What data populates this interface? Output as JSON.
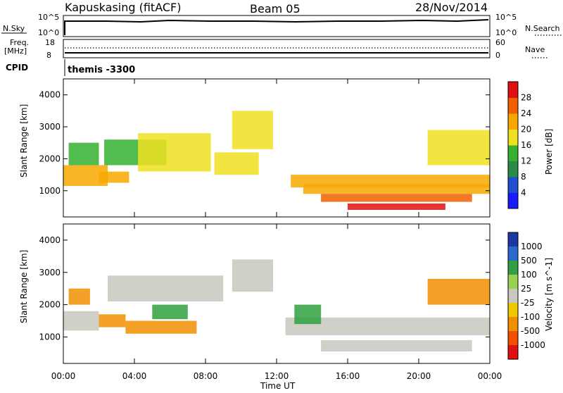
{
  "header": {
    "station": "Kapuskasing (fitACF)",
    "beam": "Beam 05",
    "date": "28/Nov/2014"
  },
  "top_panels": {
    "nsky": {
      "label": "N.Sky",
      "ticks": [
        "10^5",
        "10^0"
      ]
    },
    "nsearch": {
      "label": "N.Search",
      "ticks": [
        "10^5",
        "10^0"
      ]
    },
    "freq": {
      "label_line1": "Freq.",
      "label_line2": "[MHz]",
      "ticks": [
        "18",
        "8"
      ]
    },
    "nave": {
      "label": "Nave",
      "ticks": [
        "60",
        "0"
      ]
    },
    "cpid": {
      "label": "CPID",
      "value": "themis -3300"
    }
  },
  "colors": {
    "power": [
      "#1a1aff",
      "#1f4fd0",
      "#2a8a4a",
      "#35b030",
      "#f0e020",
      "#f7a800",
      "#f06000",
      "#e01010"
    ],
    "velocity": [
      "#1a3aa0",
      "#2a6ad0",
      "#30a040",
      "#9ad050",
      "#c8c8c0",
      "#f0c800",
      "#f09000",
      "#f05000",
      "#e01010"
    ],
    "gs": "#c8c8c0"
  },
  "chart_data": [
    {
      "type": "heatmap",
      "title": "",
      "ylabel": "Slant Range [km]",
      "xlabel": "",
      "ylim": [
        180,
        4500
      ],
      "yticks": [
        1000,
        2000,
        3000,
        4000
      ],
      "colorbar": {
        "label": "Power [dB]",
        "ticks": [
          "28",
          "24",
          "20",
          "16",
          "12",
          "8",
          "4"
        ],
        "range": [
          0,
          32
        ]
      },
      "bands": [
        {
          "t": [
            0.0,
            2.5
          ],
          "r": [
            1150,
            1800
          ],
          "v": 20
        },
        {
          "t": [
            0.3,
            2.0
          ],
          "r": [
            1800,
            2500
          ],
          "v": 14
        },
        {
          "t": [
            2.0,
            3.7
          ],
          "r": [
            1250,
            1600
          ],
          "v": 22
        },
        {
          "t": [
            2.3,
            5.8
          ],
          "r": [
            1800,
            2600
          ],
          "v": 15
        },
        {
          "t": [
            4.2,
            8.3
          ],
          "r": [
            1600,
            2800
          ],
          "v": 18
        },
        {
          "t": [
            8.5,
            11.0
          ],
          "r": [
            1500,
            2200
          ],
          "v": 16
        },
        {
          "t": [
            9.5,
            11.8
          ],
          "r": [
            2300,
            3500
          ],
          "v": 18
        },
        {
          "t": [
            12.8,
            24.0
          ],
          "r": [
            1100,
            1500
          ],
          "v": 20
        },
        {
          "t": [
            13.5,
            24.0
          ],
          "r": [
            900,
            1200
          ],
          "v": 22
        },
        {
          "t": [
            14.5,
            23.0
          ],
          "r": [
            650,
            900
          ],
          "v": 26
        },
        {
          "t": [
            16.0,
            21.5
          ],
          "r": [
            400,
            600
          ],
          "v": 28
        },
        {
          "t": [
            20.5,
            24.0
          ],
          "r": [
            1800,
            2900
          ],
          "v": 16
        }
      ]
    },
    {
      "type": "heatmap",
      "title": "",
      "ylabel": "Slant Range [km]",
      "xlabel": "Time UT",
      "ylim": [
        180,
        4500
      ],
      "yticks": [
        1000,
        2000,
        3000,
        4000
      ],
      "xticks": [
        "00:00",
        "04:00",
        "08:00",
        "12:00",
        "16:00",
        "20:00",
        "00:00"
      ],
      "colorbar": {
        "label": "Velocity [m s^-1]",
        "ticks": [
          "1000",
          "500",
          "100",
          "25",
          "-25",
          "-100",
          "-500",
          "-1000"
        ]
      },
      "bands": [
        {
          "t": [
            0.0,
            2.0
          ],
          "r": [
            1200,
            1800
          ],
          "v": 0
        },
        {
          "t": [
            2.0,
            3.5
          ],
          "r": [
            1300,
            1700
          ],
          "v": -300
        },
        {
          "t": [
            3.5,
            7.5
          ],
          "r": [
            1100,
            1500
          ],
          "v": -400
        },
        {
          "t": [
            2.5,
            9.0
          ],
          "r": [
            2100,
            2900
          ],
          "v": 0
        },
        {
          "t": [
            5.0,
            7.0
          ],
          "r": [
            1550,
            2000
          ],
          "v": 150
        },
        {
          "t": [
            9.5,
            11.8
          ],
          "r": [
            2400,
            3400
          ],
          "v": 0
        },
        {
          "t": [
            12.5,
            24.0
          ],
          "r": [
            1050,
            1600
          ],
          "v": 0
        },
        {
          "t": [
            14.5,
            23.0
          ],
          "r": [
            550,
            900
          ],
          "v": 0
        },
        {
          "t": [
            13.0,
            14.5
          ],
          "r": [
            1400,
            2000
          ],
          "v": 120
        },
        {
          "t": [
            20.5,
            24.0
          ],
          "r": [
            2000,
            2800
          ],
          "v": -200
        },
        {
          "t": [
            0.3,
            1.5
          ],
          "r": [
            2000,
            2500
          ],
          "v": -300
        }
      ]
    }
  ]
}
